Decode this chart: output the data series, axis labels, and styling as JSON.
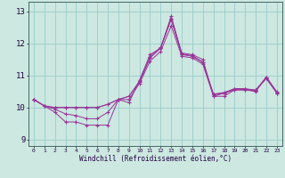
{
  "title": "",
  "xlabel": "Windchill (Refroidissement éolien,°C)",
  "background_color": "#cce8e0",
  "grid_color": "#99cccc",
  "line_color": "#993399",
  "xlim": [
    -0.5,
    23.5
  ],
  "ylim": [
    8.8,
    13.3
  ],
  "yticks": [
    9,
    10,
    11,
    12,
    13
  ],
  "xticks": [
    0,
    1,
    2,
    3,
    4,
    5,
    6,
    7,
    8,
    9,
    10,
    11,
    12,
    13,
    14,
    15,
    16,
    17,
    18,
    19,
    20,
    21,
    22,
    23
  ],
  "series": [
    [
      10.25,
      10.05,
      9.85,
      9.55,
      9.55,
      9.45,
      9.45,
      9.45,
      10.25,
      10.15,
      10.85,
      11.65,
      11.85,
      12.85,
      11.7,
      11.65,
      11.5,
      10.35,
      10.35,
      10.55,
      10.55,
      10.5,
      10.95,
      10.45
    ],
    [
      10.25,
      10.05,
      9.95,
      9.8,
      9.75,
      9.65,
      9.65,
      9.85,
      10.25,
      10.25,
      10.75,
      11.45,
      11.75,
      12.55,
      11.6,
      11.55,
      11.35,
      10.35,
      10.45,
      10.55,
      10.55,
      10.55,
      10.9,
      10.45
    ],
    [
      10.25,
      10.05,
      10.0,
      10.0,
      10.0,
      10.0,
      10.0,
      10.1,
      10.25,
      10.35,
      10.8,
      11.55,
      11.85,
      12.75,
      11.65,
      11.6,
      11.4,
      10.4,
      10.45,
      10.57,
      10.57,
      10.52,
      10.93,
      10.47
    ],
    [
      10.25,
      10.05,
      10.0,
      10.0,
      10.0,
      10.0,
      10.0,
      10.1,
      10.25,
      10.35,
      10.82,
      11.58,
      11.88,
      12.78,
      11.67,
      11.62,
      11.42,
      10.42,
      10.47,
      10.59,
      10.59,
      10.54,
      10.95,
      10.49
    ]
  ]
}
